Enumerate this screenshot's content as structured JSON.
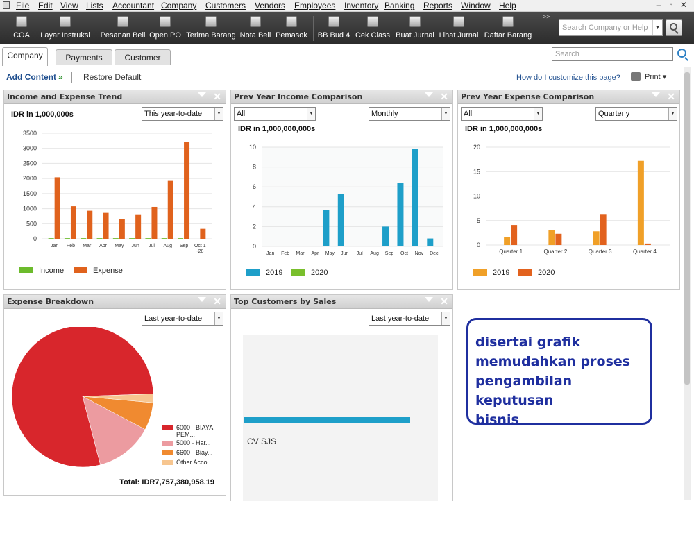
{
  "menubar": {
    "items": [
      "File",
      "Edit",
      "View",
      "Lists",
      "Accountant",
      "Company",
      "Customers",
      "Vendors",
      "Employees",
      "Inventory",
      "Banking",
      "Reports",
      "Window",
      "Help"
    ]
  },
  "toolbar": {
    "group1": [
      "COA",
      "Layar Instruksi"
    ],
    "group2": [
      "Pesanan Beli",
      "Open PO",
      "Terima Barang",
      "Nota Beli",
      "Pemasok"
    ],
    "group3": [
      "BB Bud 4",
      "Cek Class",
      "Buat Jurnal",
      "Lihat Jurnal",
      "Daftar Barang"
    ],
    "more": ">>",
    "search_placeholder": "Search Company or Help"
  },
  "tabs": [
    "Company",
    "Payments",
    "Customer"
  ],
  "search_placeholder": "Search",
  "actions": {
    "add_content": "Add Content",
    "restore_default": "Restore Default",
    "customize_link": "How do I customize this page?",
    "print": "Print"
  },
  "panels": {
    "income_expense": {
      "title": "Income and Expense Trend",
      "filter": "This year-to-date",
      "unit": "IDR in 1,000,000s",
      "legend": [
        "Income",
        "Expense"
      ]
    },
    "prev_income": {
      "title": "Prev Year Income Comparison",
      "filter_a": "All",
      "filter_b": "Monthly",
      "unit": "IDR in 1,000,000,000s",
      "legend": [
        "2019",
        "2020"
      ]
    },
    "prev_expense": {
      "title": "Prev Year Expense Comparison",
      "filter_a": "All",
      "filter_b": "Quarterly",
      "unit": "IDR in 1,000,000,000s",
      "legend": [
        "2019",
        "2020"
      ]
    },
    "expense_breakdown": {
      "title": "Expense Breakdown",
      "filter": "Last year-to-date",
      "legend": [
        "6000 · BIAYA PEM...",
        "5000 · Har...",
        "6600 · Biay...",
        "Other Acco..."
      ],
      "total": "Total: IDR7,757,380,958.19"
    },
    "top_customers": {
      "title": "Top Customers by Sales",
      "filter": "Last year-to-date",
      "customer": "CV SJS"
    }
  },
  "annotation": {
    "lines": [
      "disertai grafik",
      "memudahkan proses",
      "pengambilan keputusan",
      "bisnis"
    ]
  },
  "colors": {
    "income": "#6cbb2c",
    "expense": "#e0621d",
    "y2019_income": "#1e9fc9",
    "y2020_income": "#79bf2c",
    "y2019_expense": "#f0a028",
    "y2020_expense": "#e2621e",
    "annotation": "#1f2f9f"
  },
  "chart_data": [
    {
      "type": "bar",
      "title": "Income and Expense Trend",
      "ylabel": "IDR in 1,000,000s",
      "ylim": [
        0,
        3500
      ],
      "yticks": [
        0,
        500,
        1000,
        1500,
        2000,
        2500,
        3000,
        3500
      ],
      "categories": [
        "Jan",
        "Feb",
        "Mar",
        "Apr",
        "May",
        "Jun",
        "Jul",
        "Aug",
        "Sep",
        "Oct 1 -28"
      ],
      "series": [
        {
          "name": "Income",
          "values": [
            20,
            20,
            20,
            20,
            20,
            20,
            20,
            20,
            20,
            0
          ]
        },
        {
          "name": "Expense",
          "values": [
            2040,
            1080,
            930,
            860,
            660,
            790,
            1060,
            1920,
            3220,
            330
          ]
        }
      ]
    },
    {
      "type": "bar",
      "title": "Prev Year Income Comparison",
      "ylabel": "IDR in 1,000,000,000s",
      "ylim": [
        0,
        10
      ],
      "yticks": [
        0,
        2,
        4,
        6,
        8,
        10
      ],
      "categories": [
        "Jan",
        "Feb",
        "Mar",
        "Apr",
        "May",
        "Jun",
        "Jul",
        "Aug",
        "Sep",
        "Oct",
        "Nov",
        "Dec"
      ],
      "series": [
        {
          "name": "2019",
          "values": [
            0,
            0,
            0,
            0,
            3.7,
            5.3,
            0,
            0,
            2.0,
            6.4,
            9.8,
            0.8
          ]
        },
        {
          "name": "2020",
          "values": [
            0.05,
            0.05,
            0.05,
            0.05,
            0.05,
            0.05,
            0.05,
            0.05,
            0.05,
            0,
            0,
            0
          ]
        }
      ]
    },
    {
      "type": "bar",
      "title": "Prev Year Expense Comparison",
      "ylabel": "IDR in 1,000,000,000s",
      "ylim": [
        0,
        20
      ],
      "yticks": [
        0,
        5,
        10,
        15,
        20
      ],
      "categories": [
        "Quarter 1",
        "Quarter 2",
        "Quarter 3",
        "Quarter 4"
      ],
      "series": [
        {
          "name": "2019",
          "values": [
            1.7,
            3.1,
            2.8,
            17.2
          ]
        },
        {
          "name": "2020",
          "values": [
            4.1,
            2.3,
            6.2,
            0.3
          ]
        }
      ]
    },
    {
      "type": "pie",
      "title": "Expense Breakdown",
      "labels": [
        "6000 · BIAYA PEM...",
        "5000 · Har...",
        "6600 · Biay...",
        "Other Acco..."
      ],
      "values": [
        78.5,
        13.2,
        6.3,
        2.0
      ],
      "colors": [
        "#d8262c",
        "#ec9ba0",
        "#f08a30",
        "#f7c690"
      ]
    },
    {
      "type": "bar",
      "title": "Top Customers by Sales",
      "categories": [
        "CV SJS"
      ],
      "values": [
        1
      ]
    }
  ]
}
